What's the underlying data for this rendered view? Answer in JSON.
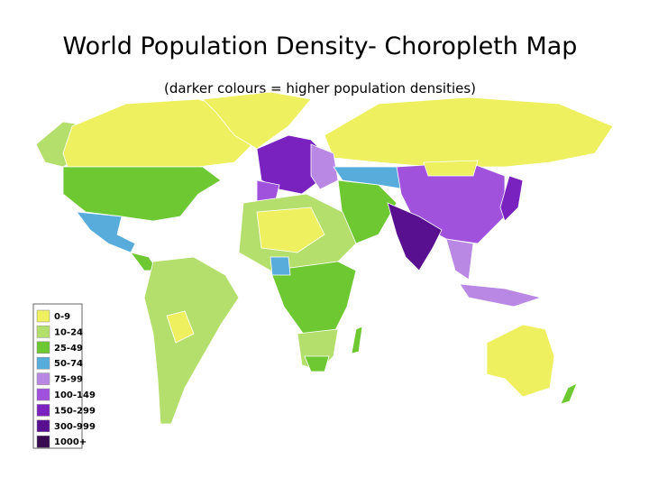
{
  "title": "World Population Density- Choropleth Map",
  "subtitle": "(darker colours = higher population densities)",
  "legend": [
    {
      "label": "0-9",
      "color": "#eef060"
    },
    {
      "label": "10-24",
      "color": "#b4df6c"
    },
    {
      "label": "25-49",
      "color": "#6ec832"
    },
    {
      "label": "50-74",
      "color": "#58acdc"
    },
    {
      "label": "75-99",
      "color": "#b888e4"
    },
    {
      "label": "100-149",
      "color": "#a052dc"
    },
    {
      "label": "150-299",
      "color": "#7a22c0"
    },
    {
      "label": "300-999",
      "color": "#581090"
    },
    {
      "label": "1000+",
      "color": "#380a50"
    }
  ]
}
